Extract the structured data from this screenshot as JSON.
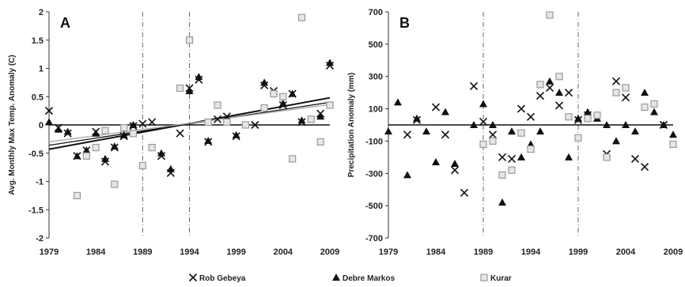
{
  "legend": {
    "position": "bottom",
    "items": [
      {
        "label": "Rob Gebeya",
        "marker": "x"
      },
      {
        "label": "Debre Markos",
        "marker": "triangle"
      },
      {
        "label": "Kurar",
        "marker": "square"
      }
    ]
  },
  "colors": {
    "rob": "#111111",
    "debre": "#111111",
    "kurar": "#9a9a9a"
  },
  "chart_data": [
    {
      "type": "scatter",
      "panel_label": "A",
      "title": "",
      "xlabel": "",
      "ylabel": "Avg. Monthly Max Temp. Anomaly (C)",
      "xlim": [
        1979,
        2009
      ],
      "ylim": [
        -2,
        2
      ],
      "x_ticks": [
        1979,
        1984,
        1989,
        1994,
        1999,
        2004,
        2009
      ],
      "y_ticks": [
        -2,
        -1.5,
        -1,
        -0.5,
        0,
        0.5,
        1,
        1.5,
        2
      ],
      "y_tick_labels": [
        "-2",
        "-1.5",
        "-1",
        "-0.5",
        "0",
        "0.5",
        "1",
        "1.5",
        "2"
      ],
      "x_tick_labels": [
        "1979",
        "1984",
        "1989",
        "1994",
        "1999",
        "2004",
        "2009"
      ],
      "vlines": [
        1989,
        1994
      ],
      "hline": 0,
      "trend_lines": [
        {
          "name": "Rob Gebeya trend",
          "x": [
            1979,
            2009
          ],
          "y": [
            -0.43,
            0.48
          ]
        },
        {
          "name": "Debre Markos trend",
          "x": [
            1979,
            2009
          ],
          "y": [
            -0.36,
            0.4
          ]
        },
        {
          "name": "Kurar trend",
          "x": [
            1979,
            2009
          ],
          "y": [
            -0.3,
            0.36
          ]
        }
      ],
      "series": [
        {
          "key": "rob",
          "marker": "x",
          "points": [
            [
              1979,
              0.25
            ],
            [
              1980,
              -0.05
            ],
            [
              1981,
              -0.15
            ],
            [
              1982,
              -0.55
            ],
            [
              1983,
              -0.45
            ],
            [
              1984,
              -0.12
            ],
            [
              1985,
              -0.65
            ],
            [
              1986,
              -0.4
            ],
            [
              1987,
              -0.2
            ],
            [
              1988,
              -0.02
            ],
            [
              1989,
              0.02
            ],
            [
              1990,
              0.05
            ],
            [
              1991,
              -0.55
            ],
            [
              1992,
              -0.85
            ],
            [
              1993,
              -0.15
            ],
            [
              1994,
              0.65
            ],
            [
              1995,
              0.8
            ],
            [
              1996,
              -0.3
            ],
            [
              1997,
              0.1
            ],
            [
              1998,
              0.15
            ],
            [
              1999,
              -0.2
            ],
            [
              2001,
              0.0
            ],
            [
              2002,
              0.7
            ],
            [
              2003,
              0.6
            ],
            [
              2004,
              0.35
            ],
            [
              2005,
              0.55
            ],
            [
              2006,
              0.05
            ],
            [
              2008,
              0.2
            ],
            [
              2009,
              1.05
            ]
          ]
        },
        {
          "key": "debre",
          "marker": "triangle",
          "points": [
            [
              1979,
              0.05
            ],
            [
              1980,
              -0.08
            ],
            [
              1981,
              -0.12
            ],
            [
              1982,
              -0.55
            ],
            [
              1983,
              -0.45
            ],
            [
              1984,
              -0.15
            ],
            [
              1985,
              -0.6
            ],
            [
              1986,
              -0.38
            ],
            [
              1987,
              -0.18
            ],
            [
              1988,
              0.0
            ],
            [
              1991,
              -0.5
            ],
            [
              1992,
              -0.78
            ],
            [
              1994,
              0.6
            ],
            [
              1995,
              0.85
            ],
            [
              1996,
              -0.28
            ],
            [
              1998,
              0.1
            ],
            [
              1999,
              -0.18
            ],
            [
              2002,
              0.75
            ],
            [
              2004,
              0.38
            ],
            [
              2005,
              0.55
            ],
            [
              2006,
              0.08
            ],
            [
              2008,
              0.15
            ],
            [
              2009,
              1.1
            ]
          ]
        },
        {
          "key": "kurar",
          "marker": "square",
          "points": [
            [
              1982,
              -1.25
            ],
            [
              1983,
              -0.55
            ],
            [
              1984,
              -0.4
            ],
            [
              1985,
              -0.1
            ],
            [
              1986,
              -1.05
            ],
            [
              1987,
              -0.05
            ],
            [
              1988,
              -0.15
            ],
            [
              1989,
              -0.72
            ],
            [
              1990,
              -0.4
            ],
            [
              1993,
              0.65
            ],
            [
              1994,
              1.5
            ],
            [
              1996,
              0.05
            ],
            [
              1997,
              0.35
            ],
            [
              1998,
              0.05
            ],
            [
              2000,
              0.0
            ],
            [
              2002,
              0.3
            ],
            [
              2003,
              0.55
            ],
            [
              2004,
              0.5
            ],
            [
              2005,
              -0.6
            ],
            [
              2006,
              1.9
            ],
            [
              2007,
              0.1
            ],
            [
              2008,
              -0.3
            ],
            [
              2009,
              0.35
            ]
          ]
        }
      ]
    },
    {
      "type": "scatter",
      "panel_label": "B",
      "title": "",
      "xlabel": "",
      "ylabel": "Precipitation Anomaly (mm)",
      "xlim": [
        1979,
        2009
      ],
      "ylim": [
        -700,
        700
      ],
      "x_ticks": [
        1979,
        1984,
        1989,
        1994,
        1999,
        2004,
        2009
      ],
      "y_ticks": [
        -700,
        -500,
        -300,
        -100,
        100,
        300,
        500,
        700
      ],
      "y_tick_labels": [
        "-700",
        "-500",
        "-300",
        "-100",
        "100",
        "300",
        "500",
        "700"
      ],
      "x_tick_labels": [
        "1979",
        "1984",
        "1989",
        "1994",
        "1999",
        "2004",
        "2009"
      ],
      "vlines": [
        1989,
        1999
      ],
      "hline": 0,
      "series": [
        {
          "key": "rob",
          "marker": "x",
          "points": [
            [
              1981,
              -60
            ],
            [
              1982,
              30
            ],
            [
              1984,
              110
            ],
            [
              1985,
              -60
            ],
            [
              1986,
              -280
            ],
            [
              1987,
              -420
            ],
            [
              1988,
              240
            ],
            [
              1989,
              20
            ],
            [
              1990,
              -60
            ],
            [
              1991,
              -200
            ],
            [
              1992,
              -210
            ],
            [
              1993,
              100
            ],
            [
              1994,
              50
            ],
            [
              1995,
              180
            ],
            [
              1996,
              230
            ],
            [
              1997,
              120
            ],
            [
              1998,
              200
            ],
            [
              1999,
              30
            ],
            [
              2000,
              60
            ],
            [
              2002,
              -180
            ],
            [
              2003,
              270
            ],
            [
              2004,
              170
            ],
            [
              2005,
              -210
            ],
            [
              2006,
              -260
            ],
            [
              2008,
              0
            ]
          ]
        },
        {
          "key": "debre",
          "marker": "triangle",
          "points": [
            [
              1979,
              -40
            ],
            [
              1980,
              140
            ],
            [
              1981,
              -310
            ],
            [
              1982,
              40
            ],
            [
              1983,
              -40
            ],
            [
              1984,
              -230
            ],
            [
              1985,
              80
            ],
            [
              1986,
              -240
            ],
            [
              1988,
              0
            ],
            [
              1989,
              130
            ],
            [
              1990,
              0
            ],
            [
              1991,
              -480
            ],
            [
              1992,
              -40
            ],
            [
              1993,
              -200
            ],
            [
              1994,
              -120
            ],
            [
              1995,
              -40
            ],
            [
              1996,
              270
            ],
            [
              1997,
              200
            ],
            [
              1998,
              -200
            ],
            [
              1999,
              40
            ],
            [
              2000,
              80
            ],
            [
              2001,
              40
            ],
            [
              2002,
              0
            ],
            [
              2003,
              -100
            ],
            [
              2004,
              0
            ],
            [
              2005,
              -40
            ],
            [
              2006,
              200
            ],
            [
              2007,
              80
            ],
            [
              2008,
              0
            ],
            [
              2009,
              -60
            ]
          ]
        },
        {
          "key": "kurar",
          "marker": "square",
          "points": [
            [
              1989,
              -120
            ],
            [
              1990,
              -100
            ],
            [
              1991,
              -310
            ],
            [
              1992,
              -280
            ],
            [
              1993,
              -50
            ],
            [
              1994,
              -150
            ],
            [
              1995,
              250
            ],
            [
              1996,
              680
            ],
            [
              1997,
              300
            ],
            [
              1998,
              50
            ],
            [
              1999,
              -80
            ],
            [
              2000,
              40
            ],
            [
              2001,
              60
            ],
            [
              2002,
              -200
            ],
            [
              2003,
              200
            ],
            [
              2004,
              230
            ],
            [
              2006,
              110
            ],
            [
              2007,
              130
            ],
            [
              2009,
              -120
            ]
          ]
        }
      ]
    }
  ]
}
